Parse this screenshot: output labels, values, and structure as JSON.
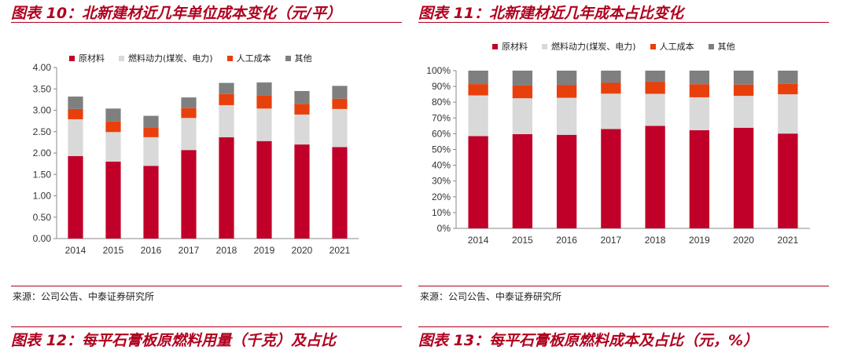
{
  "fig10": {
    "title": "图表 10：北新建材近几年单位成本变化（元/平）",
    "source": "来源：公司公告、中泰证券研究所"
  },
  "fig11": {
    "title": "图表 11：北新建材近几年成本占比变化",
    "source": "来源：公司公告、中泰证券研究所"
  },
  "fig12": {
    "title": "图表 12：每平石膏板原燃料用量（千克）及占比"
  },
  "fig13": {
    "title": "图表 13：每平石膏板原燃料成本及占比（元，%）"
  },
  "colors": {
    "raw": "#c00029",
    "fuel": "#d9d9d9",
    "labor": "#e8400c",
    "other": "#7f7f7f",
    "title": "#b0001e",
    "axis": "#888888"
  },
  "chart_data": [
    {
      "type": "bar",
      "stacked": true,
      "categories": [
        "2014",
        "2015",
        "2016",
        "2017",
        "2018",
        "2019",
        "2020",
        "2021"
      ],
      "series": [
        {
          "name": "原材料",
          "values": [
            1.93,
            1.8,
            1.7,
            2.07,
            2.37,
            2.28,
            2.2,
            2.14
          ]
        },
        {
          "name": "燃料动力(煤炭、电力)",
          "values": [
            0.86,
            0.69,
            0.67,
            0.75,
            0.75,
            0.76,
            0.7,
            0.89
          ]
        },
        {
          "name": "人工成本",
          "values": [
            0.24,
            0.25,
            0.23,
            0.23,
            0.26,
            0.3,
            0.25,
            0.24
          ]
        },
        {
          "name": "其他",
          "values": [
            0.29,
            0.3,
            0.27,
            0.25,
            0.26,
            0.31,
            0.3,
            0.3
          ]
        }
      ],
      "yticks": [
        "0.00",
        "0.50",
        "1.00",
        "1.50",
        "2.00",
        "2.50",
        "3.00",
        "3.50",
        "4.00"
      ],
      "ylim": [
        0,
        4
      ]
    },
    {
      "type": "bar",
      "stacked": true,
      "categories": [
        "2014",
        "2015",
        "2016",
        "2017",
        "2018",
        "2019",
        "2020",
        "2021"
      ],
      "series": [
        {
          "name": "原材料",
          "values": [
            58.5,
            59.7,
            59.3,
            63.0,
            65.0,
            62.2,
            63.8,
            60.1
          ]
        },
        {
          "name": "燃料动力(煤炭、电力)",
          "values": [
            25.8,
            22.8,
            23.5,
            22.4,
            20.3,
            20.9,
            20.2,
            24.9
          ]
        },
        {
          "name": "人工成本",
          "values": [
            7.2,
            8.1,
            8.0,
            6.9,
            7.5,
            8.3,
            7.2,
            6.7
          ]
        },
        {
          "name": "其他",
          "values": [
            8.5,
            9.4,
            9.2,
            7.7,
            7.2,
            8.6,
            8.8,
            8.3
          ]
        }
      ],
      "yticks": [
        "0%",
        "10%",
        "20%",
        "30%",
        "40%",
        "50%",
        "60%",
        "70%",
        "80%",
        "90%",
        "100%"
      ],
      "ylim": [
        0,
        100
      ]
    }
  ]
}
